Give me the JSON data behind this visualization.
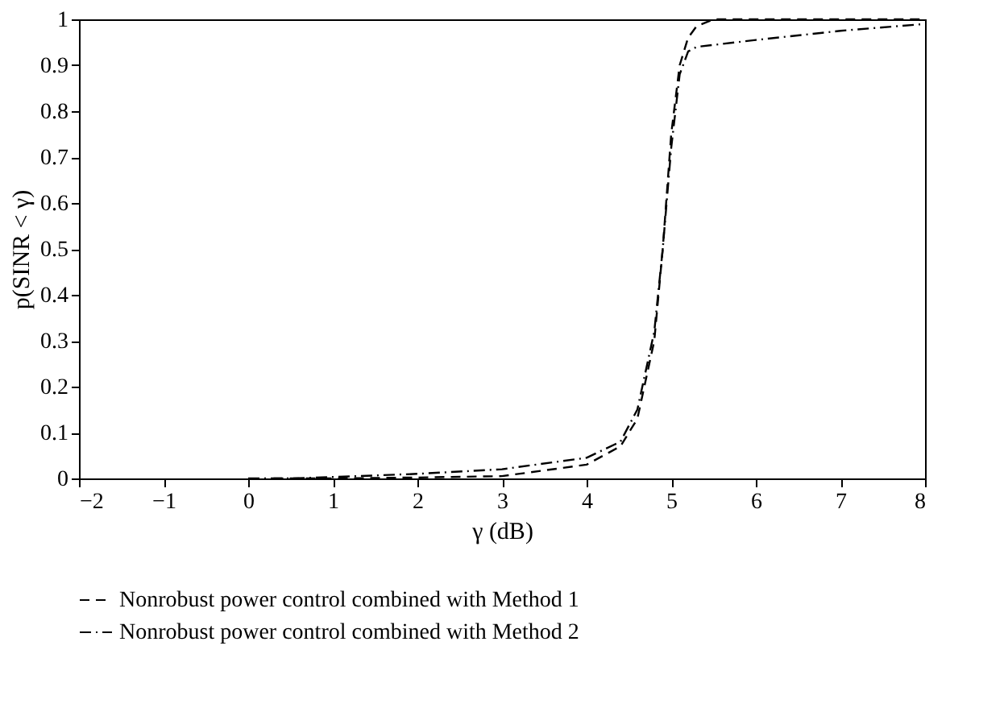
{
  "chart_data": {
    "type": "line",
    "xlabel": "γ (dB)",
    "ylabel": "p(SINR < γ)",
    "xlim": [
      -2,
      8
    ],
    "xticks": [
      {
        "value": -2,
        "label": "−2"
      },
      {
        "value": -1,
        "label": "−1"
      },
      0,
      1,
      2,
      3,
      4,
      5,
      6,
      7,
      8
    ],
    "ylim": [
      0,
      1
    ],
    "yticks": [
      0,
      0.1,
      0.2,
      0.3,
      0.4,
      0.5,
      0.6,
      0.7,
      0.8,
      0.9,
      1
    ],
    "grid": false,
    "legend": "bottom",
    "marker": "none",
    "series": [
      {
        "name": "Nonrobust power control combined with Method 1",
        "color": "#000000",
        "line_style": "dashed",
        "x": [
          0.3,
          1,
          2,
          3,
          4,
          4.4,
          4.6,
          4.8,
          4.9,
          5.0,
          5.1,
          5.2,
          5.3,
          5.5,
          6,
          7,
          8
        ],
        "values": [
          0,
          0,
          0.002,
          0.005,
          0.03,
          0.07,
          0.13,
          0.3,
          0.5,
          0.75,
          0.9,
          0.96,
          0.985,
          1,
          1,
          1,
          1
        ]
      },
      {
        "name": "Nonrobust power control combined with Method 2",
        "color": "#000000",
        "line_style": "dashdot",
        "x": [
          0,
          0.5,
          1,
          2,
          3,
          4,
          4.4,
          4.6,
          4.8,
          4.9,
          5.0,
          5.1,
          5.2,
          5.3,
          6,
          7,
          8
        ],
        "values": [
          0,
          0,
          0.003,
          0.01,
          0.02,
          0.045,
          0.08,
          0.15,
          0.32,
          0.5,
          0.72,
          0.88,
          0.93,
          0.94,
          0.955,
          0.975,
          0.99
        ]
      }
    ]
  }
}
